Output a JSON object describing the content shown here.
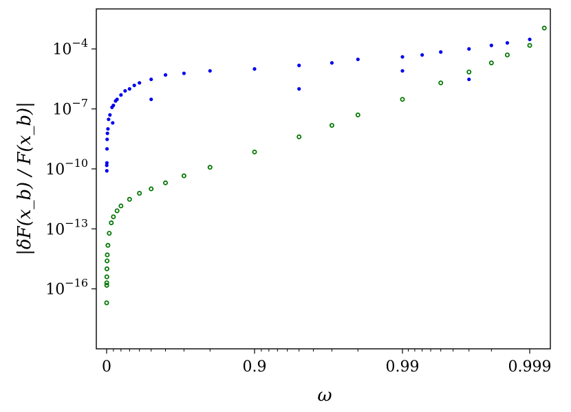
{
  "chart_data": {
    "type": "scatter",
    "title": "",
    "xlabel": "ω",
    "ylabel": "|δF(x_b) / F(x_b)|",
    "x_scale": "log(1-ω), reversed",
    "y_scale": "log",
    "xlim": [
      -0.01,
      0.99907
    ],
    "ylim": [
      1e-19,
      0.01
    ],
    "grid": false,
    "legend": "none",
    "x_ticks": [
      {
        "value": 0,
        "label": "0"
      },
      {
        "value": 0.9,
        "label": "0.9"
      },
      {
        "value": 0.99,
        "label": "0.99"
      },
      {
        "value": 0.999,
        "label": "0.999"
      }
    ],
    "y_ticks": [
      {
        "exp": -4,
        "base": "10",
        "sup": "−4"
      },
      {
        "exp": -7,
        "base": "10",
        "sup": "−7"
      },
      {
        "exp": -10,
        "base": "10",
        "sup": "−10"
      },
      {
        "exp": -13,
        "base": "10",
        "sup": "−13"
      },
      {
        "exp": -16,
        "base": "10",
        "sup": "−16"
      }
    ],
    "series": [
      {
        "color": "#0000ee",
        "marker": "filled-circle",
        "shape": "noisy upward trend",
        "points": [
          [
            0.002,
            1.5e-10
          ],
          [
            0.003,
            8e-11
          ],
          [
            0.004,
            2e-10
          ],
          [
            0.006,
            1e-09
          ],
          [
            0.008,
            3e-09
          ],
          [
            0.012,
            6e-09
          ],
          [
            0.02,
            1e-08
          ],
          [
            0.03,
            3e-08
          ],
          [
            0.05,
            5e-08
          ],
          [
            0.08,
            1.2e-07
          ],
          [
            0.1,
            1.5e-07
          ],
          [
            0.13,
            2.5e-07
          ],
          [
            0.15,
            3e-07
          ],
          [
            0.2,
            5e-07
          ],
          [
            0.25,
            8e-07
          ],
          [
            0.3,
            1e-06
          ],
          [
            0.35,
            1.5e-06
          ],
          [
            0.4,
            2e-06
          ],
          [
            0.5,
            3e-06
          ],
          [
            0.6,
            5e-06
          ],
          [
            0.7,
            6e-06
          ],
          [
            0.8,
            8e-06
          ],
          [
            0.9,
            1e-05
          ],
          [
            0.95,
            1.5e-05
          ],
          [
            0.97,
            2e-05
          ],
          [
            0.98,
            3e-05
          ],
          [
            0.99,
            4e-05
          ],
          [
            0.993,
            5e-05
          ],
          [
            0.995,
            7e-05
          ],
          [
            0.997,
            0.0001
          ],
          [
            0.998,
            0.00015
          ],
          [
            0.9985,
            0.0002
          ],
          [
            0.999,
            0.0003
          ],
          [
            0.09,
            2e-08
          ],
          [
            0.5,
            3e-07
          ],
          [
            0.95,
            1e-06
          ],
          [
            0.99,
            8e-06
          ],
          [
            0.997,
            3e-06
          ]
        ]
      },
      {
        "color": "#007700",
        "marker": "circle",
        "shape": "smooth curve",
        "points": [
          [
            0.0005,
            2e-17
          ],
          [
            0.0015,
            2e-16
          ],
          [
            0.002,
            1.5e-16
          ],
          [
            0.003,
            4e-16
          ],
          [
            0.005,
            1e-15
          ],
          [
            0.007,
            2.5e-15
          ],
          [
            0.01,
            5e-15
          ],
          [
            0.02,
            1.5e-14
          ],
          [
            0.04,
            6e-14
          ],
          [
            0.07,
            2e-13
          ],
          [
            0.1,
            4e-13
          ],
          [
            0.15,
            8e-13
          ],
          [
            0.2,
            1.4e-12
          ],
          [
            0.3,
            3e-12
          ],
          [
            0.4,
            6e-12
          ],
          [
            0.5,
            1e-11
          ],
          [
            0.6,
            2e-11
          ],
          [
            0.7,
            4.5e-11
          ],
          [
            0.8,
            1.2e-10
          ],
          [
            0.9,
            7e-10
          ],
          [
            0.95,
            4e-09
          ],
          [
            0.97,
            1.5e-08
          ],
          [
            0.98,
            5e-08
          ],
          [
            0.99,
            3e-07
          ],
          [
            0.995,
            2e-06
          ],
          [
            0.997,
            7e-06
          ],
          [
            0.998,
            2e-05
          ],
          [
            0.9985,
            5e-05
          ],
          [
            0.999,
            0.00015
          ],
          [
            0.99905,
            0.0011
          ]
        ]
      }
    ]
  }
}
